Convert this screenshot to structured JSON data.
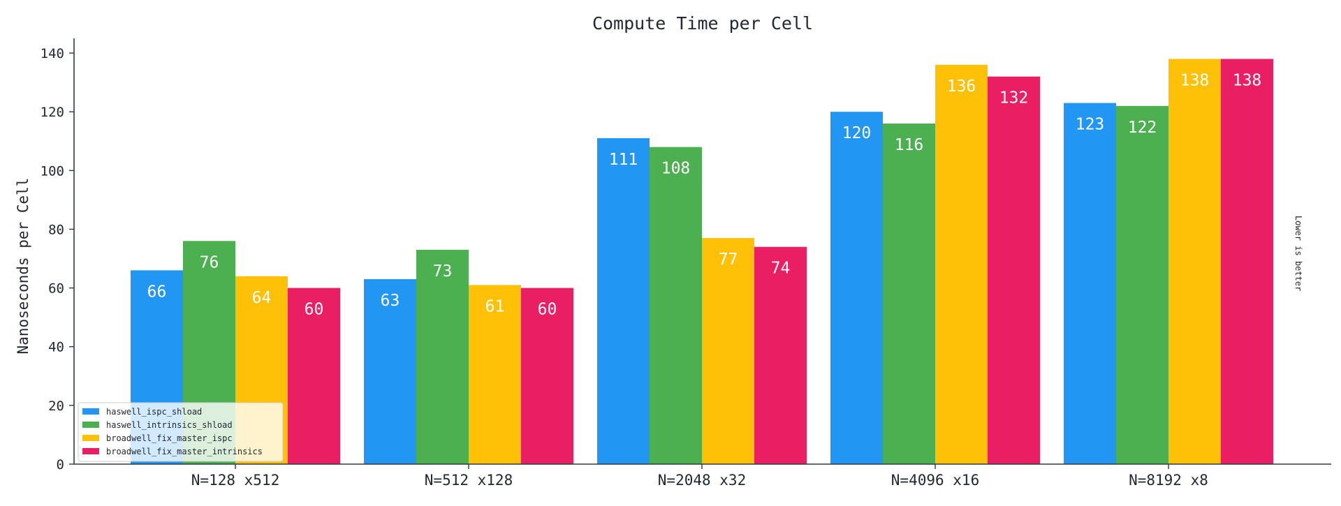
{
  "chart_data": {
    "type": "bar",
    "title": "Compute Time per Cell",
    "ylabel": "Nanoseconds per Cell",
    "xlabel": "",
    "ylim": [
      0,
      145
    ],
    "yticks": [
      0,
      20,
      40,
      60,
      80,
      100,
      120,
      140
    ],
    "grid": false,
    "legend_position": "bottom-left",
    "side_note": "Lower is better",
    "categories": [
      "N=128 x512",
      "N=512 x128",
      "N=2048 x32",
      "N=4096 x16",
      "N=8192 x8"
    ],
    "series": [
      {
        "name": "haswell_ispc_shload",
        "color": "#2196F3",
        "values": [
          66,
          63,
          111,
          120,
          123
        ]
      },
      {
        "name": "haswell_intrinsics_shload",
        "color": "#4CAF50",
        "values": [
          76,
          73,
          108,
          116,
          122
        ]
      },
      {
        "name": "broadwell_fix_master_ispc",
        "color": "#FFC107",
        "values": [
          64,
          61,
          77,
          136,
          138
        ]
      },
      {
        "name": "broadwell_fix_master_intrinsics",
        "color": "#E91E63",
        "values": [
          60,
          60,
          74,
          132,
          138
        ]
      }
    ]
  }
}
